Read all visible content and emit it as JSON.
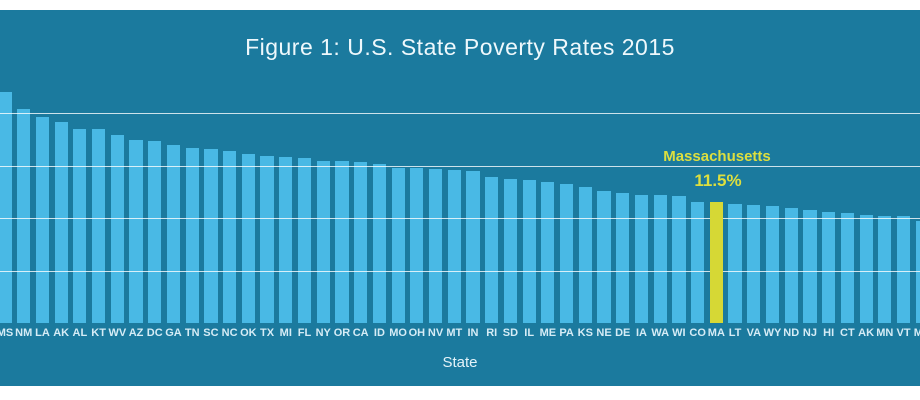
{
  "header": {
    "title": "Figure 1: U.S. State Poverty Rates 2015"
  },
  "annotation": {
    "label": "Massachusetts",
    "value": "11.5%"
  },
  "axis": {
    "xlabel": "State"
  },
  "colors": {
    "panel_background": "#1b7a9e",
    "bar": "#49b9e5",
    "highlight_bar": "#d6d835",
    "annotation_text": "#dddf3f",
    "gridline": "rgba(255,255,255,0.78)",
    "label_text": "#d5ecf6",
    "title_text": "#eef8fc"
  },
  "chart_data": {
    "type": "bar",
    "title": "Figure 1: U.S. State Poverty Rates 2015",
    "xlabel": "State",
    "ylabel": "",
    "ylim": [
      0,
      25
    ],
    "grid": true,
    "legend": false,
    "gridline_values": [
      5,
      10,
      15,
      20
    ],
    "highlighted_category": "MA",
    "highlighted_index": 38,
    "categories": [
      "MS",
      "NM",
      "LA",
      "AK",
      "AL",
      "KT",
      "WV",
      "AZ",
      "DC",
      "GA",
      "TN",
      "SC",
      "NC",
      "OK",
      "TX",
      "MI",
      "FL",
      "NY",
      "OR",
      "CA",
      "ID",
      "MO",
      "OH",
      "NV",
      "MT",
      "IN",
      "RI",
      "SD",
      "IL",
      "ME",
      "PA",
      "KS",
      "NE",
      "DE",
      "IA",
      "WA",
      "WI",
      "CO",
      "MA",
      "LT",
      "VA",
      "WY",
      "ND",
      "NJ",
      "HI",
      "CT",
      "AK",
      "MN",
      "VT",
      "MD"
    ],
    "values": [
      22.0,
      20.4,
      19.6,
      19.1,
      18.5,
      18.5,
      17.9,
      17.4,
      17.3,
      17.0,
      16.7,
      16.6,
      16.4,
      16.1,
      15.9,
      15.8,
      15.7,
      15.4,
      15.4,
      15.3,
      15.1,
      14.8,
      14.8,
      14.7,
      14.6,
      14.5,
      13.9,
      13.7,
      13.6,
      13.4,
      13.2,
      13.0,
      12.6,
      12.4,
      12.2,
      12.2,
      12.1,
      11.5,
      11.5,
      11.3,
      11.2,
      11.1,
      11.0,
      10.8,
      10.6,
      10.5,
      10.3,
      10.2,
      10.2,
      9.7
    ]
  }
}
